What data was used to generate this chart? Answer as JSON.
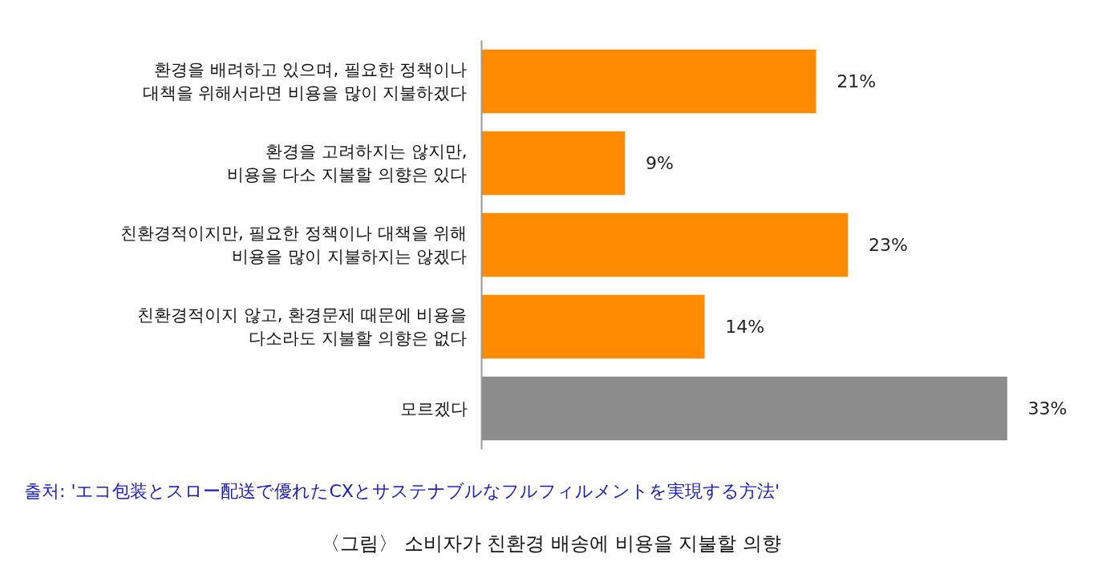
{
  "chart_data": {
    "type": "bar",
    "orientation": "horizontal",
    "title": "〈그림〉 소비자가 친환경 배송에 비용을 지불할 의향",
    "categories": [
      "환경을 배려하고 있으며, 필요한 정책이나\n대책을 위해서라면 비용을 많이 지불하겠다",
      "환경을 고려하지는 않지만,\n비용을 다소 지불할 의향은 있다",
      "친환경적이지만, 필요한 정책이나 대책을 위해\n비용을 많이 지불하지는 않겠다",
      "친환경적이지 않고, 환경문제 때문에 비용을\n다소라도 지불할 의향은 없다",
      "모르겠다"
    ],
    "values": [
      21,
      9,
      23,
      14,
      33
    ],
    "value_labels": [
      "21%",
      "9%",
      "23%",
      "14%",
      "33%"
    ],
    "colors": [
      "#ff8c00",
      "#ff8c00",
      "#ff8c00",
      "#ff8c00",
      "#8c8c8c"
    ],
    "tick_labels": "y",
    "grid": false,
    "annotations": [
      "출처: 'エコ包装とスロー配送で優れたCXとサステナブルなフルフィルメントを実現する方法'"
    ]
  }
}
